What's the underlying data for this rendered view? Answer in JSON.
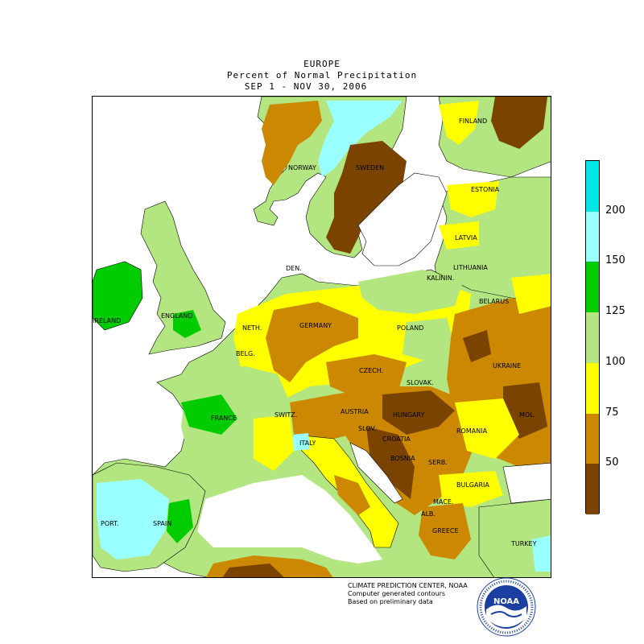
{
  "header": {
    "region": "EUROPE",
    "subtitle": "Percent of Normal Precipitation",
    "period": "SEP  1 - NOV 30, 2006"
  },
  "legend": {
    "ticks": [
      "200",
      "150",
      "125",
      "100",
      "75",
      "50"
    ],
    "colors": [
      "#00e5e5",
      "#99ffff",
      "#00cc00",
      "#b3e680",
      "#ffff00",
      "#cc8800",
      "#7a4400"
    ]
  },
  "map_labels": {
    "finland": "FINLAND",
    "norway": "NORWAY",
    "sweden": "SWEDEN",
    "estonia": "ESTONIA",
    "latvia": "LATVIA",
    "lithuania": "LITHUANIA",
    "den": "DEN.",
    "kalinin": "KALININ.",
    "belarus": "BELARUS",
    "ireland": "IRELAND",
    "england": "ENGLAND",
    "neth": "NETH.",
    "germany": "GERMANY",
    "poland": "POLAND",
    "belg": "BELG.",
    "czech": "CZECH.",
    "ukraine": "UKRAINE",
    "slovak": "SLOVAK.",
    "mol": "MOL.",
    "france": "FRANCE",
    "switz": "SWITZ.",
    "austria": "AUSTRIA",
    "hungary": "HUNGARY",
    "romania": "ROMANIA",
    "sloven": "SLOV.",
    "croatia": "CROATIA",
    "italy": "ITALY",
    "bosnia": "BOSNIA",
    "serb": "SERB.",
    "bulgaria": "BULGARIA",
    "port": "PORT.",
    "spain": "SPAIN",
    "maced": "MACE.",
    "alb": "ALB.",
    "greece": "GREECE",
    "turkey": "TURKEY"
  },
  "credits": {
    "line1": "CLIMATE PREDICTION CENTER, NOAA",
    "line2": "Computer generated contours",
    "line3": "Based on preliminary data"
  },
  "logo": {
    "text": "NOAA",
    "ring_text": "NATIONAL OCEANIC AND ATMOSPHERIC ADMINISTRATION · U.S. DEPARTMENT OF COMMERCE"
  }
}
